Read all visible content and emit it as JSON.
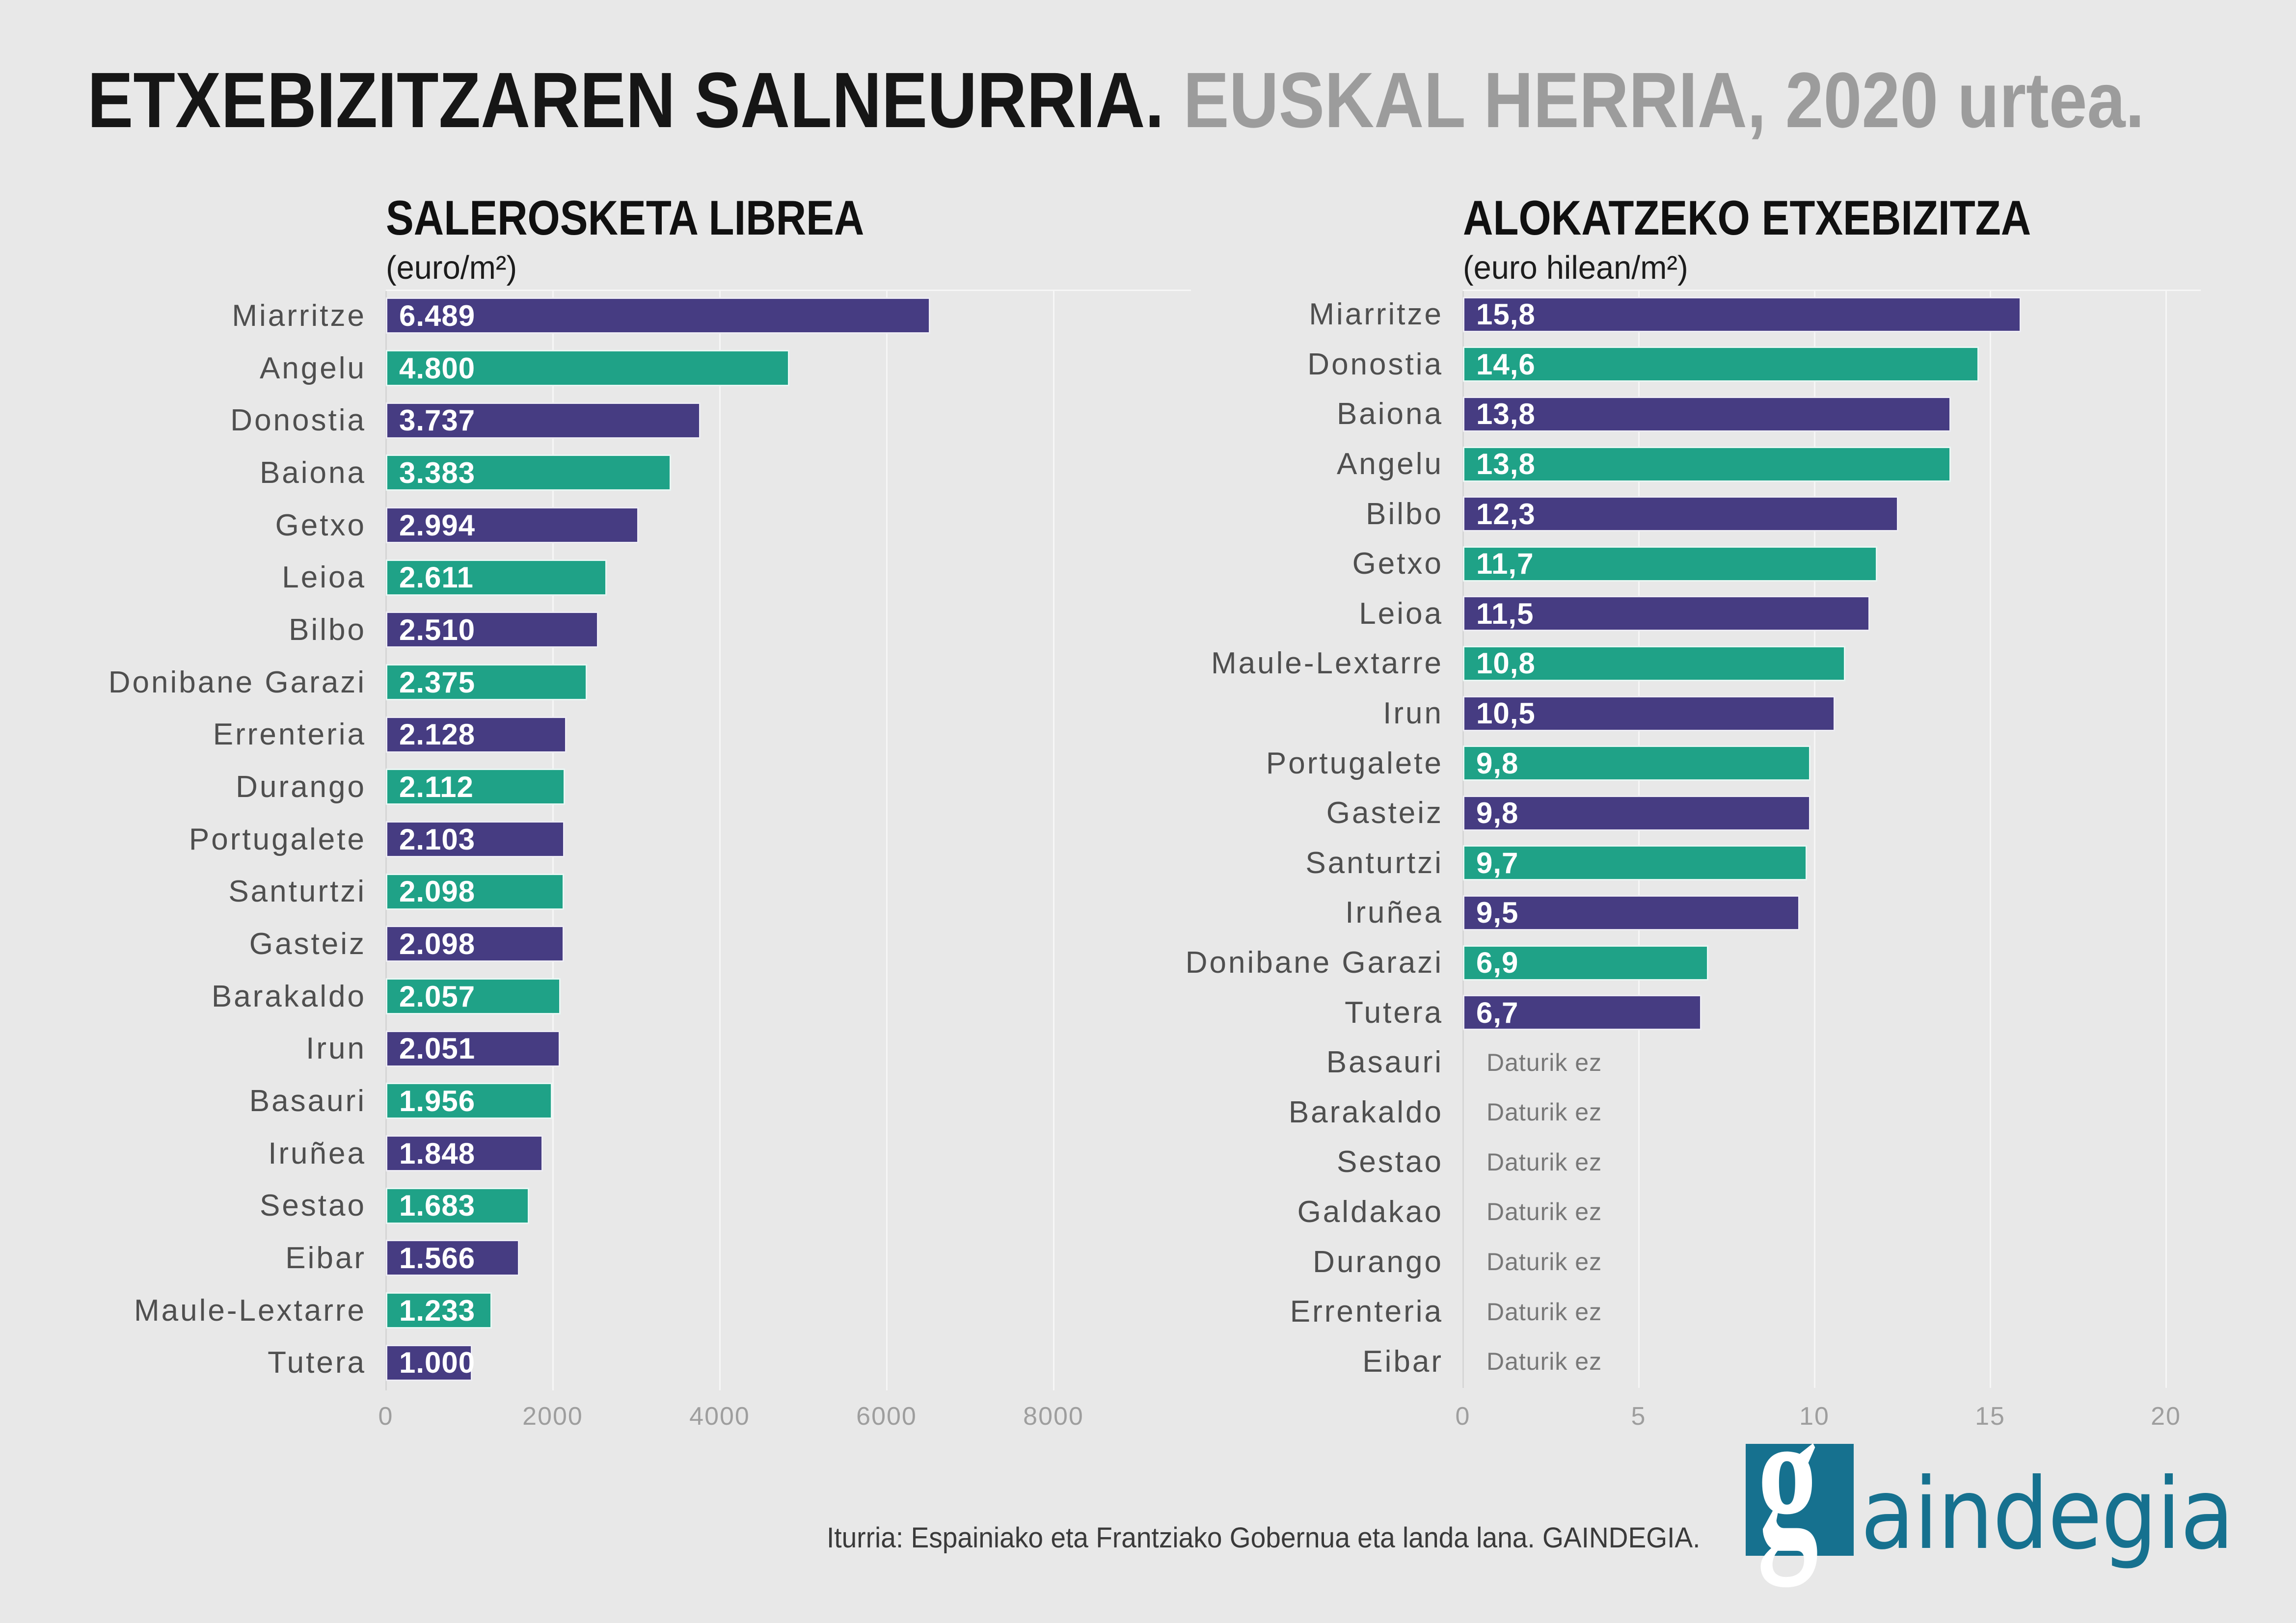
{
  "title": {
    "black": "ETXEBIZITZAREN SALNEURRIA.",
    "gray": " EUSKAL HERRIA, 2020 urtea."
  },
  "footer": {
    "source": "Iturria: Espainiako eta Frantziako Gobernua eta landa lana. GAINDEGIA."
  },
  "logo": {
    "g": "g",
    "rest": "aindegia"
  },
  "colors": {
    "background": "#e8e8e8",
    "purple": "#463c82",
    "teal": "#1fa287",
    "logo_teal": "#16718f",
    "title_gray": "#9c9c9c"
  },
  "chart_data": [
    {
      "id": "sales",
      "type": "bar",
      "orientation": "horizontal",
      "title": "SALEROSKETA LIBREA",
      "subtitle": "(euro/m²)",
      "x_ticks": [
        0,
        2000,
        4000,
        6000,
        8000
      ],
      "xlim": [
        0,
        8800
      ],
      "no_data_label": "Daturik ez",
      "rows": [
        {
          "label": "Miarritze",
          "value": 6489,
          "value_label": "6.489",
          "color": "purple"
        },
        {
          "label": "Angelu",
          "value": 4800,
          "value_label": "4.800",
          "color": "teal"
        },
        {
          "label": "Donostia",
          "value": 3737,
          "value_label": "3.737",
          "color": "purple"
        },
        {
          "label": "Baiona",
          "value": 3383,
          "value_label": "3.383",
          "color": "teal"
        },
        {
          "label": "Getxo",
          "value": 2994,
          "value_label": "2.994",
          "color": "purple"
        },
        {
          "label": "Leioa",
          "value": 2611,
          "value_label": "2.611",
          "color": "teal"
        },
        {
          "label": "Bilbo",
          "value": 2510,
          "value_label": "2.510",
          "color": "purple"
        },
        {
          "label": "Donibane Garazi",
          "value": 2375,
          "value_label": "2.375",
          "color": "teal"
        },
        {
          "label": "Errenteria",
          "value": 2128,
          "value_label": "2.128",
          "color": "purple"
        },
        {
          "label": "Durango",
          "value": 2112,
          "value_label": "2.112",
          "color": "teal"
        },
        {
          "label": "Portugalete",
          "value": 2103,
          "value_label": "2.103",
          "color": "purple"
        },
        {
          "label": "Santurtzi",
          "value": 2098,
          "value_label": "2.098",
          "color": "teal"
        },
        {
          "label": "Gasteiz",
          "value": 2098,
          "value_label": "2.098",
          "color": "purple"
        },
        {
          "label": "Barakaldo",
          "value": 2057,
          "value_label": "2.057",
          "color": "teal"
        },
        {
          "label": "Irun",
          "value": 2051,
          "value_label": "2.051",
          "color": "purple"
        },
        {
          "label": "Basauri",
          "value": 1956,
          "value_label": "1.956",
          "color": "teal"
        },
        {
          "label": "Iruñea",
          "value": 1848,
          "value_label": "1.848",
          "color": "purple"
        },
        {
          "label": "Sestao",
          "value": 1683,
          "value_label": "1.683",
          "color": "teal"
        },
        {
          "label": "Eibar",
          "value": 1566,
          "value_label": "1.566",
          "color": "purple"
        },
        {
          "label": "Maule-Lextarre",
          "value": 1233,
          "value_label": "1.233",
          "color": "teal"
        },
        {
          "label": "Tutera",
          "value": 1000,
          "value_label": "1.000",
          "color": "purple"
        }
      ]
    },
    {
      "id": "rent",
      "type": "bar",
      "orientation": "horizontal",
      "title": "ALOKATZEKO ETXEBIZITZA",
      "subtitle": "(euro hilean/m²)",
      "x_ticks": [
        0,
        5,
        10,
        15,
        20
      ],
      "xlim": [
        0,
        21
      ],
      "no_data_label": "Daturik ez",
      "rows": [
        {
          "label": "Miarritze",
          "value": 15.8,
          "value_label": "15,8",
          "color": "purple"
        },
        {
          "label": "Donostia",
          "value": 14.6,
          "value_label": "14,6",
          "color": "teal"
        },
        {
          "label": "Baiona",
          "value": 13.8,
          "value_label": "13,8",
          "color": "purple"
        },
        {
          "label": "Angelu",
          "value": 13.8,
          "value_label": "13,8",
          "color": "teal"
        },
        {
          "label": "Bilbo",
          "value": 12.3,
          "value_label": "12,3",
          "color": "purple"
        },
        {
          "label": "Getxo",
          "value": 11.7,
          "value_label": "11,7",
          "color": "teal"
        },
        {
          "label": "Leioa",
          "value": 11.5,
          "value_label": "11,5",
          "color": "purple"
        },
        {
          "label": "Maule-Lextarre",
          "value": 10.8,
          "value_label": "10,8",
          "color": "teal"
        },
        {
          "label": "Irun",
          "value": 10.5,
          "value_label": "10,5",
          "color": "purple"
        },
        {
          "label": "Portugalete",
          "value": 9.8,
          "value_label": "9,8",
          "color": "teal"
        },
        {
          "label": "Gasteiz",
          "value": 9.8,
          "value_label": "9,8",
          "color": "purple"
        },
        {
          "label": "Santurtzi",
          "value": 9.7,
          "value_label": "9,7",
          "color": "teal"
        },
        {
          "label": "Iruñea",
          "value": 9.5,
          "value_label": "9,5",
          "color": "purple"
        },
        {
          "label": "Donibane Garazi",
          "value": 6.9,
          "value_label": "6,9",
          "color": "teal"
        },
        {
          "label": "Tutera",
          "value": 6.7,
          "value_label": "6,7",
          "color": "purple"
        },
        {
          "label": "Basauri",
          "value": null,
          "value_label": null,
          "color": null
        },
        {
          "label": "Barakaldo",
          "value": null,
          "value_label": null,
          "color": null
        },
        {
          "label": "Sestao",
          "value": null,
          "value_label": null,
          "color": null
        },
        {
          "label": "Galdakao",
          "value": null,
          "value_label": null,
          "color": null
        },
        {
          "label": "Durango",
          "value": null,
          "value_label": null,
          "color": null
        },
        {
          "label": "Errenteria",
          "value": null,
          "value_label": null,
          "color": null
        },
        {
          "label": "Eibar",
          "value": null,
          "value_label": null,
          "color": null
        }
      ]
    }
  ]
}
